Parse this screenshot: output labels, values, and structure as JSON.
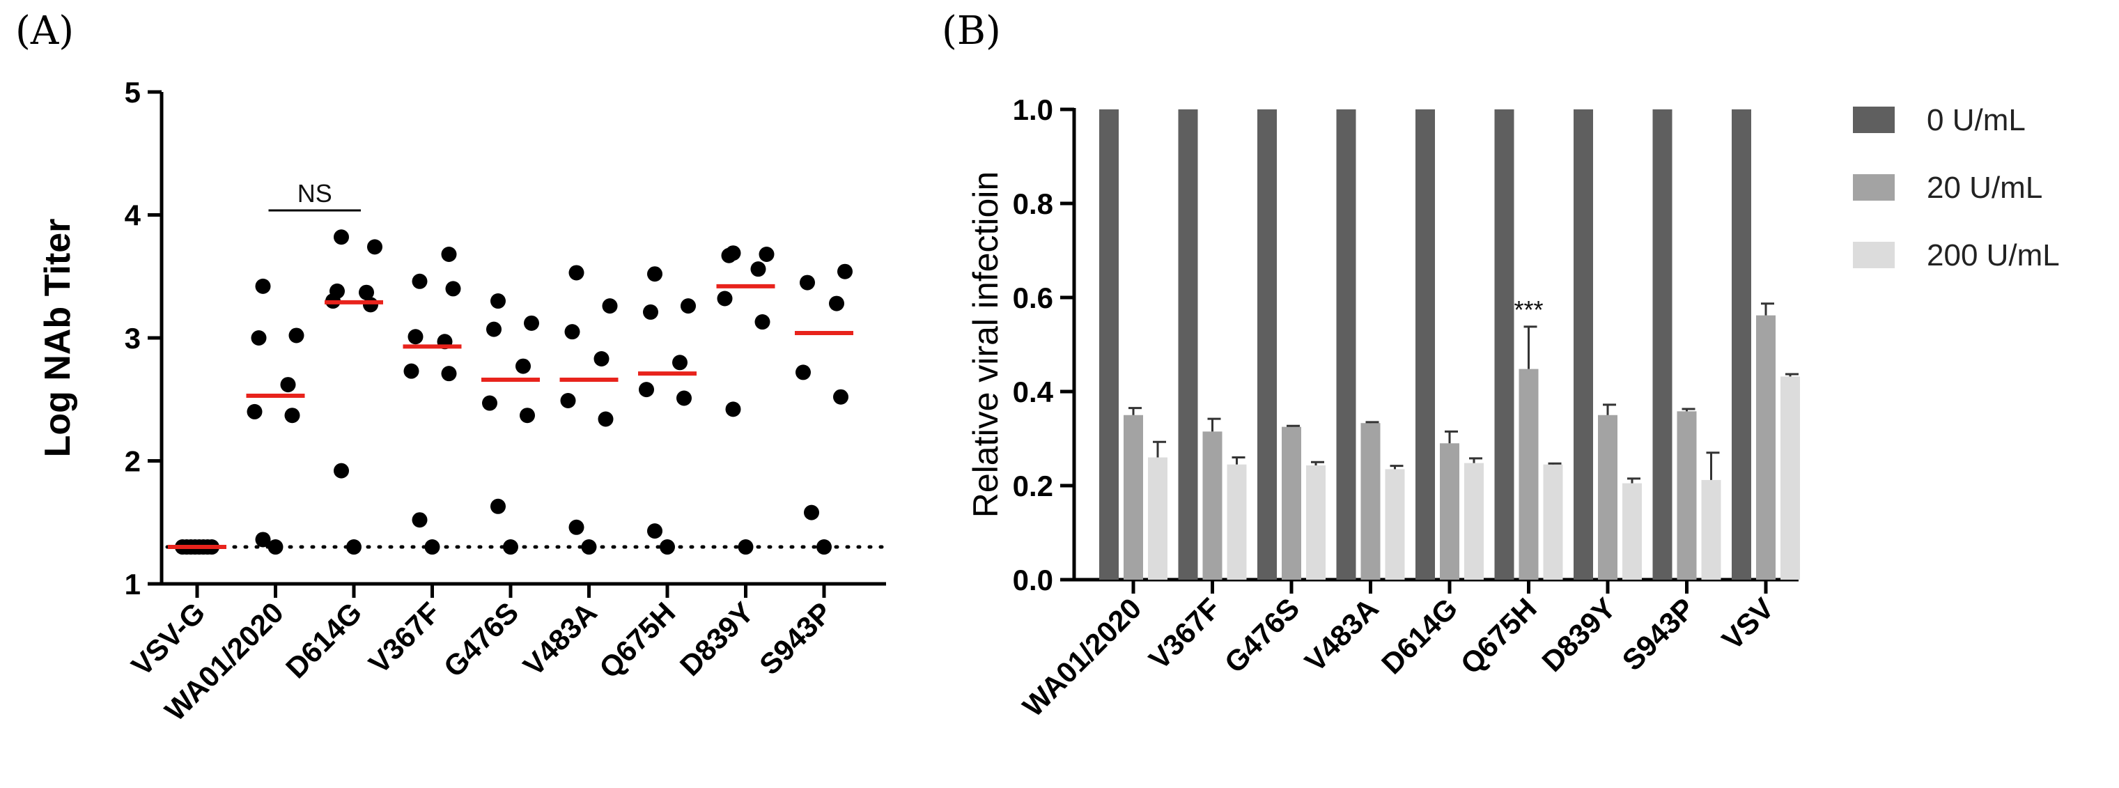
{
  "panels": {
    "a_label": "(A)",
    "b_label": "(B)"
  },
  "chart_data": [
    {
      "type": "scatter",
      "ylabel": "Log NAb Titer",
      "ylim": [
        1,
        5
      ],
      "yticks": [
        "1",
        "2",
        "3",
        "4",
        "5"
      ],
      "categories": [
        "VSV-G",
        "WA01/2020",
        "D614G",
        "V367F",
        "G476S",
        "V483A",
        "Q675H",
        "D839Y",
        "S943P"
      ],
      "points": [
        [
          1.3,
          1.3,
          1.3,
          1.3,
          1.3,
          1.3,
          1.3,
          1.3
        ],
        [
          1.3,
          1.36,
          2.37,
          2.4,
          2.62,
          3.0,
          3.02,
          3.42
        ],
        [
          1.3,
          1.92,
          3.27,
          3.3,
          3.38,
          3.37,
          3.74,
          3.82
        ],
        [
          1.3,
          1.52,
          2.71,
          2.73,
          2.97,
          3.01,
          3.4,
          3.46,
          3.68
        ],
        [
          1.3,
          1.63,
          2.37,
          2.47,
          2.77,
          3.07,
          3.12,
          3.3
        ],
        [
          1.3,
          1.46,
          2.34,
          2.49,
          2.83,
          3.05,
          3.26,
          3.53
        ],
        [
          1.3,
          1.43,
          2.51,
          2.58,
          2.8,
          3.21,
          3.26,
          3.52
        ],
        [
          1.3,
          2.42,
          3.13,
          3.32,
          3.56,
          3.67,
          3.68,
          3.69
        ],
        [
          1.3,
          1.58,
          2.52,
          2.72,
          3.28,
          3.45,
          3.54
        ]
      ],
      "means": [
        1.3,
        2.53,
        3.29,
        2.93,
        2.66,
        2.66,
        2.71,
        3.42,
        3.04
      ],
      "reference_line": 1.3,
      "annotation": {
        "text": "NS",
        "from": "WA01/2020",
        "to": "D614G"
      },
      "colors": {
        "points": "#000000",
        "mean": "#e8231c"
      }
    },
    {
      "type": "bar",
      "ylabel": "Relative viral infectioin",
      "ylim": [
        0,
        1.0
      ],
      "yticks": [
        "0.0",
        "0.2",
        "0.4",
        "0.6",
        "0.8",
        "1.0"
      ],
      "categories": [
        "WA01/2020",
        "V367F",
        "G476S",
        "V483A",
        "D614G",
        "Q675H",
        "D839Y",
        "S943P",
        "VSV"
      ],
      "series": [
        {
          "name": "0 U/mL",
          "color": "#5f5f5f",
          "values": [
            1.0,
            1.0,
            1.0,
            1.0,
            1.0,
            1.0,
            1.0,
            1.0,
            1.0
          ],
          "errors": [
            0,
            0,
            0,
            0,
            0,
            0,
            0,
            0,
            0
          ]
        },
        {
          "name": "20 U/mL",
          "color": "#a3a3a3",
          "values": [
            0.35,
            0.315,
            0.325,
            0.333,
            0.29,
            0.448,
            0.35,
            0.358,
            0.562
          ],
          "errors": [
            0.015,
            0.027,
            0.002,
            0.002,
            0.025,
            0.09,
            0.022,
            0.005,
            0.025
          ]
        },
        {
          "name": "200 U/mL",
          "color": "#dcdcdc",
          "values": [
            0.26,
            0.245,
            0.243,
            0.235,
            0.248,
            0.245,
            0.205,
            0.212,
            0.432
          ],
          "errors": [
            0.033,
            0.015,
            0.007,
            0.007,
            0.01,
            0.002,
            0.01,
            0.058,
            0.005
          ]
        }
      ],
      "annotation": {
        "text": "***",
        "category": "Q675H",
        "series": "20 U/mL"
      }
    }
  ]
}
